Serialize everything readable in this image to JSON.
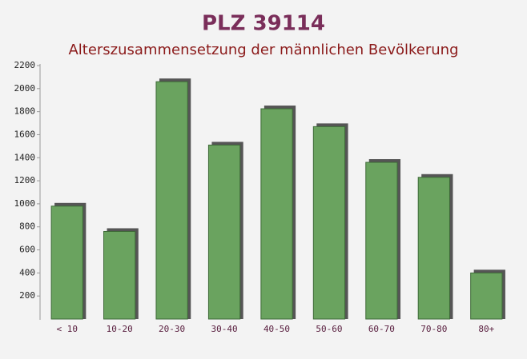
{
  "chart_data": {
    "type": "bar",
    "title": "PLZ 39114",
    "subtitle": "Alterszusammensetzung der männlichen Bevölkerung",
    "categories": [
      "< 10",
      "10-20",
      "20-30",
      "30-40",
      "40-50",
      "50-60",
      "60-70",
      "70-80",
      "80+"
    ],
    "values": [
      980,
      760,
      2060,
      1510,
      1825,
      1670,
      1360,
      1230,
      400
    ],
    "color": "#6aa35f",
    "ylim": [
      0,
      2200
    ],
    "yticks": [
      200,
      400,
      600,
      800,
      1000,
      1200,
      1400,
      1600,
      1800,
      2000,
      2200
    ],
    "grid": false
  }
}
